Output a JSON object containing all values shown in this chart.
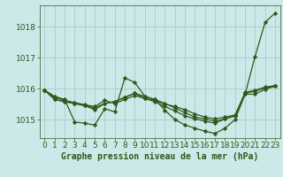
{
  "title": "Graphe pression niveau de la mer (hPa)",
  "bg_color": "#cce8e8",
  "grid_color": "#aacccc",
  "line_color": "#2d5a1b",
  "xlim": [
    -0.5,
    23.5
  ],
  "ylim": [
    1014.4,
    1018.7
  ],
  "yticks": [
    1015,
    1016,
    1017,
    1018
  ],
  "xticks": [
    0,
    1,
    2,
    3,
    4,
    5,
    6,
    7,
    8,
    9,
    10,
    11,
    12,
    13,
    14,
    15,
    16,
    17,
    18,
    19,
    20,
    21,
    22,
    23
  ],
  "series": [
    [
      1015.95,
      1015.75,
      1015.65,
      1014.92,
      1014.88,
      1014.82,
      1015.35,
      1015.25,
      1016.35,
      1016.2,
      1015.75,
      1015.65,
      1015.3,
      1015.0,
      1014.82,
      1014.72,
      1014.62,
      1014.55,
      1014.72,
      1015.0,
      1015.82,
      1017.05,
      1018.15,
      1018.45
    ],
    [
      1015.95,
      1015.72,
      1015.62,
      1015.55,
      1015.48,
      1015.42,
      1015.62,
      1015.52,
      1015.65,
      1015.78,
      1015.68,
      1015.62,
      1015.5,
      1015.42,
      1015.32,
      1015.18,
      1015.08,
      1015.02,
      1015.08,
      1015.15,
      1015.82,
      1015.82,
      1015.98,
      1016.08
    ],
    [
      1015.95,
      1015.65,
      1015.58,
      1015.52,
      1015.45,
      1015.38,
      1015.52,
      1015.58,
      1015.72,
      1015.85,
      1015.75,
      1015.65,
      1015.52,
      1015.38,
      1015.22,
      1015.08,
      1015.02,
      1014.95,
      1015.02,
      1015.12,
      1015.88,
      1015.95,
      1016.05,
      1016.1
    ],
    [
      1015.95,
      1015.65,
      1015.58,
      1015.52,
      1015.45,
      1015.32,
      1015.52,
      1015.58,
      1015.72,
      1015.85,
      1015.68,
      1015.58,
      1015.42,
      1015.28,
      1015.12,
      1015.02,
      1014.95,
      1014.88,
      1015.02,
      1015.12,
      1015.85,
      1015.92,
      1016.02,
      1016.08
    ]
  ],
  "xlabel_fontsize": 6.5,
  "ylabel_fontsize": 6.5,
  "title_fontsize": 7,
  "marker": "D",
  "markersize": 2.2,
  "linewidth": 0.9
}
